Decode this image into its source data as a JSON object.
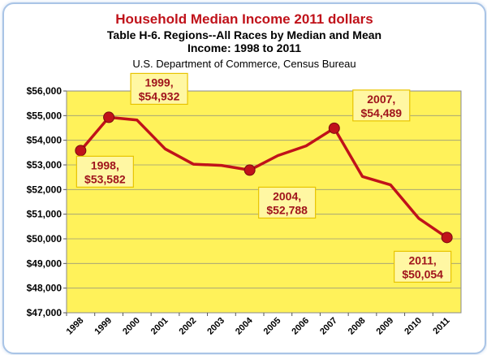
{
  "title": "Household Median Income 2011 dollars",
  "subtitle_line1": "Table H-6.  Regions--All Races by Median and Mean",
  "subtitle_line2": "Income: 1998 to 2011",
  "source": "U.S. Department of Commerce, Census Bureau",
  "colors": {
    "plot_bg": "#fff25a",
    "line": "#c0121a",
    "annotation_text": "#a0141c",
    "annotation_bg": "#fff7a3",
    "annotation_border": "#e8c400",
    "title": "#c0121a"
  },
  "chart_data": {
    "type": "line",
    "title": "Household Median Income 2011 dollars",
    "xlabel": "",
    "ylabel": "",
    "x": [
      "1998",
      "1999",
      "2000",
      "2001",
      "2002",
      "2003",
      "2004",
      "2005",
      "2006",
      "2007",
      "2008",
      "2009",
      "2010",
      "2011"
    ],
    "series": [
      {
        "values": [
          53582,
          54932,
          54820,
          53650,
          53030,
          52980,
          52788,
          53380,
          53770,
          54489,
          52530,
          52190,
          50830,
          50054
        ]
      }
    ],
    "ylim": [
      47000,
      56000
    ],
    "y_ticks": [
      "$47,000",
      "$48,000",
      "$49,000",
      "$50,000",
      "$51,000",
      "$52,000",
      "$53,000",
      "$54,000",
      "$55,000",
      "$56,000"
    ],
    "grid": true,
    "markers_at": [
      "1998",
      "1999",
      "2004",
      "2007",
      "2011"
    ],
    "annotations": [
      {
        "year": "1998",
        "line1": "1998,",
        "line2": "$53,582"
      },
      {
        "year": "1999",
        "line1": "1999,",
        "line2": "$54,932"
      },
      {
        "year": "2004",
        "line1": "2004,",
        "line2": "$52,788"
      },
      {
        "year": "2007",
        "line1": "2007,",
        "line2": "$54,489"
      },
      {
        "year": "2011",
        "line1": "2011,",
        "line2": "$50,054"
      }
    ]
  }
}
